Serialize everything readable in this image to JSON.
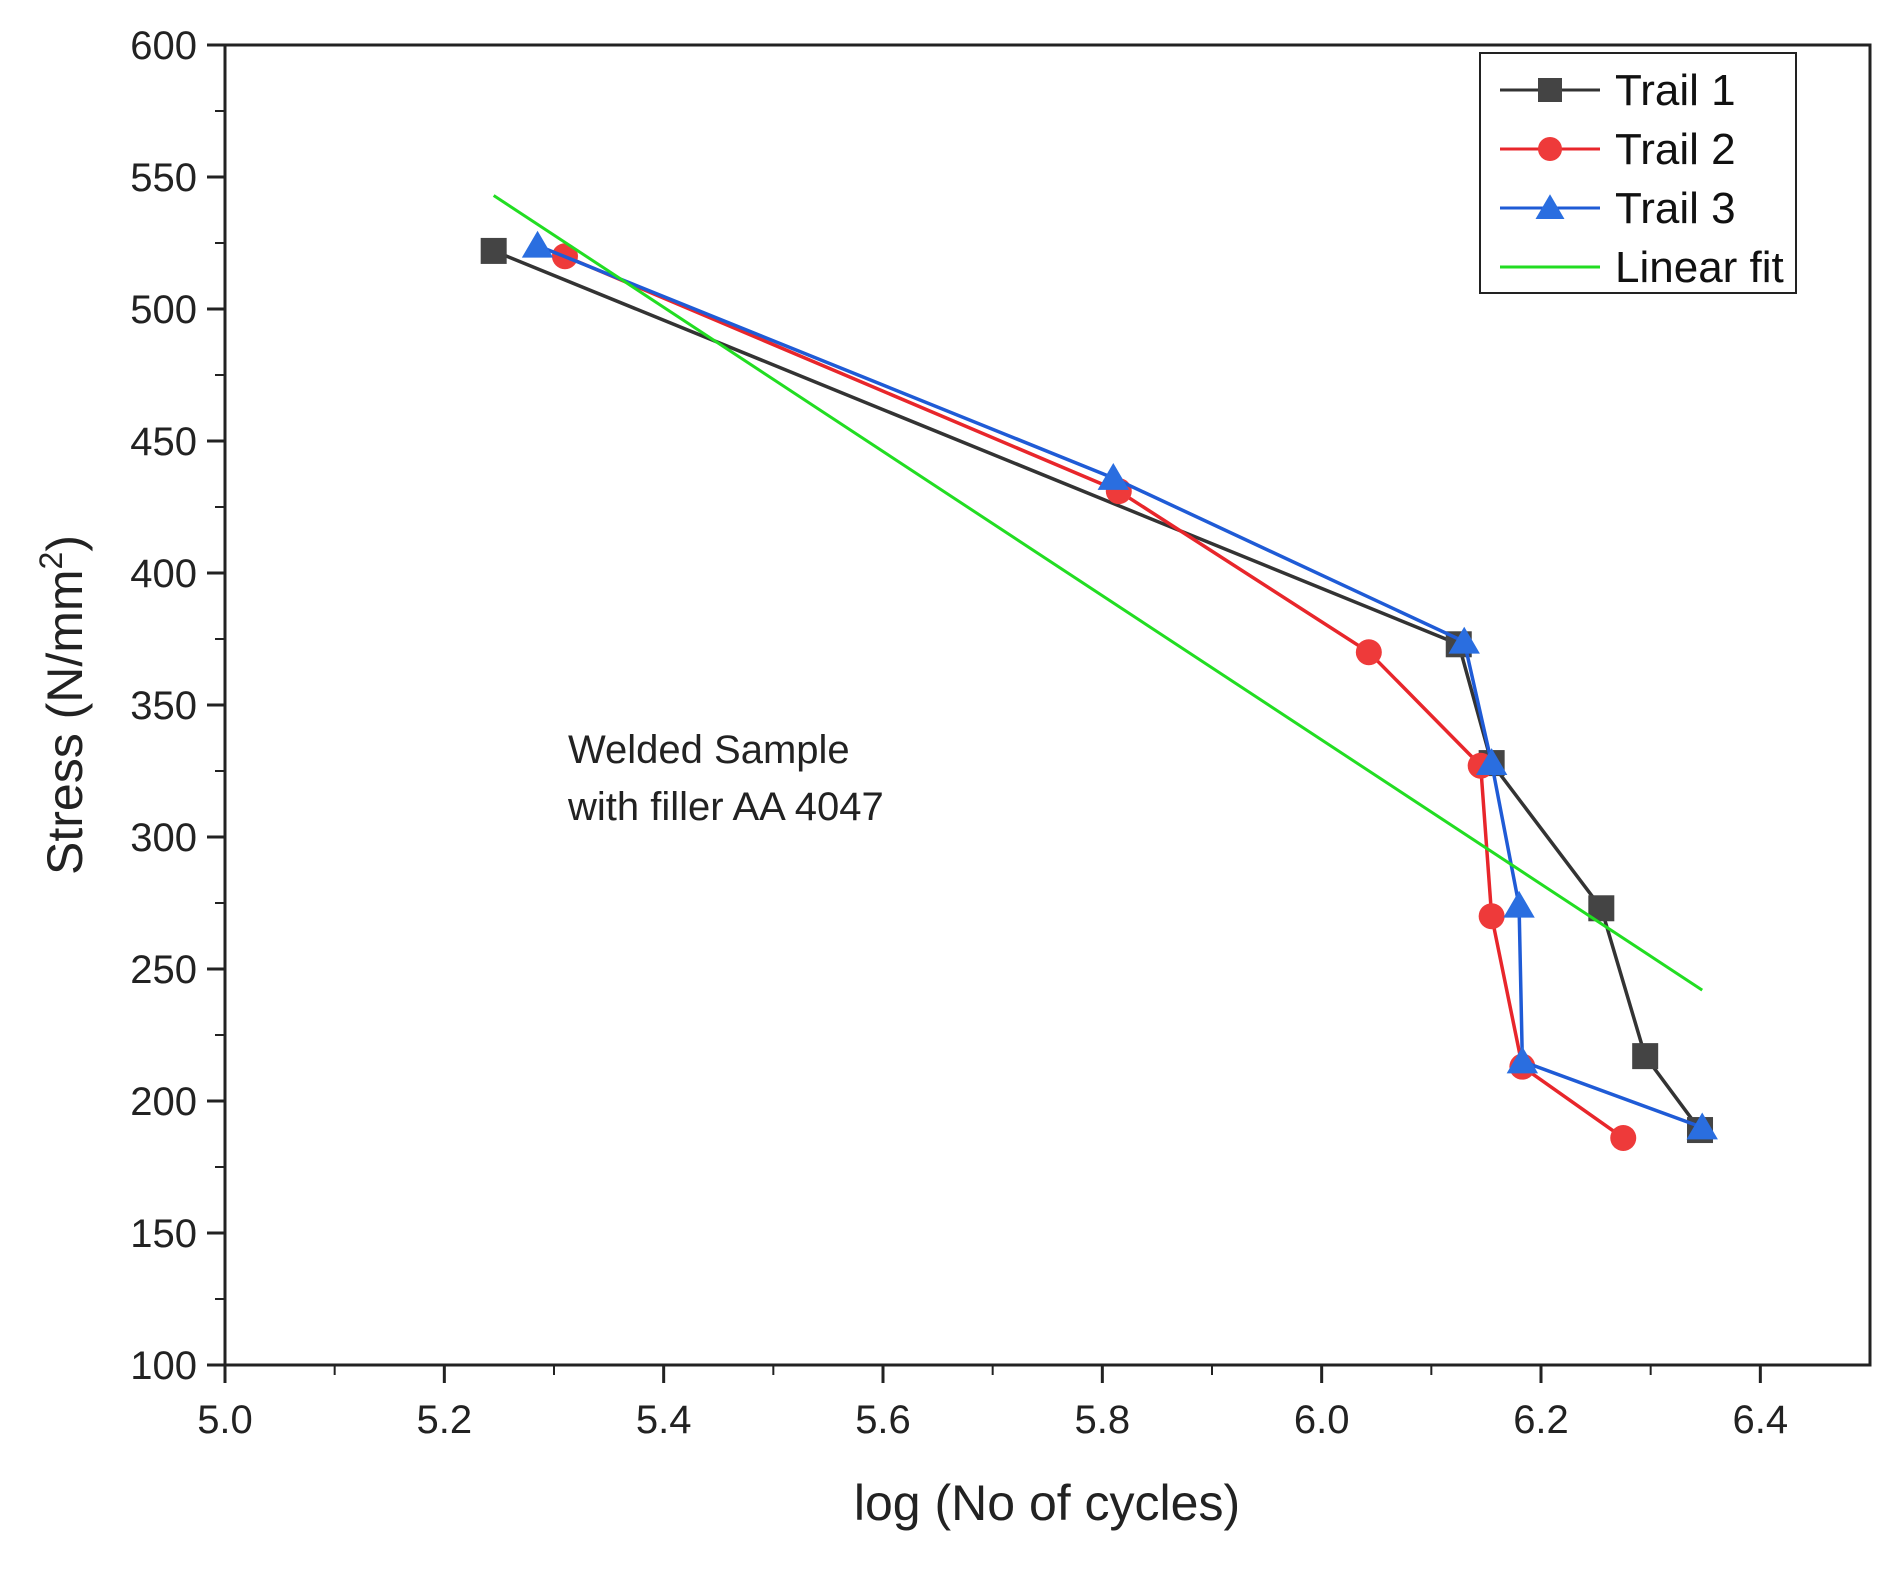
{
  "chart_data": {
    "type": "line",
    "xlabel": "log (No of cycles)",
    "ylabel_prefix": "Stress (N/mm",
    "ylabel_sup": "2",
    "ylabel_suffix": ")",
    "xlim": [
      5.0,
      6.5
    ],
    "ylim": [
      100,
      600
    ],
    "xticks": [
      5.0,
      5.2,
      5.4,
      5.6,
      5.8,
      6.0,
      6.2,
      6.4
    ],
    "yticks": [
      100,
      150,
      200,
      250,
      300,
      350,
      400,
      450,
      500,
      550,
      600
    ],
    "grid": false,
    "legend_position": "top-right",
    "annotation": [
      "Welded Sample",
      "with filler AA 4047"
    ],
    "series": [
      {
        "name": "Trail 1",
        "color": "#333333",
        "marker": "square",
        "x": [
          5.245,
          6.125,
          6.155,
          6.255,
          6.295,
          6.345
        ],
        "y": [
          522,
          373,
          328,
          273,
          217,
          189
        ]
      },
      {
        "name": "Trail 2",
        "color": "#e8262b",
        "marker": "circle",
        "x": [
          5.31,
          5.815,
          6.043,
          6.145,
          6.155,
          6.183,
          6.275
        ],
        "y": [
          520,
          431,
          370,
          327,
          270,
          213,
          186
        ]
      },
      {
        "name": "Trail 3",
        "color": "#1f5bd6",
        "marker": "triangle",
        "x": [
          5.285,
          5.81,
          6.13,
          6.155,
          6.18,
          6.183,
          6.347
        ],
        "y": [
          524,
          436,
          374,
          328,
          274,
          215,
          190
        ]
      },
      {
        "name": "Linear fit",
        "color": "#22dd22",
        "marker": "none",
        "x": [
          5.245,
          6.347
        ],
        "y": [
          543,
          242
        ]
      }
    ]
  }
}
